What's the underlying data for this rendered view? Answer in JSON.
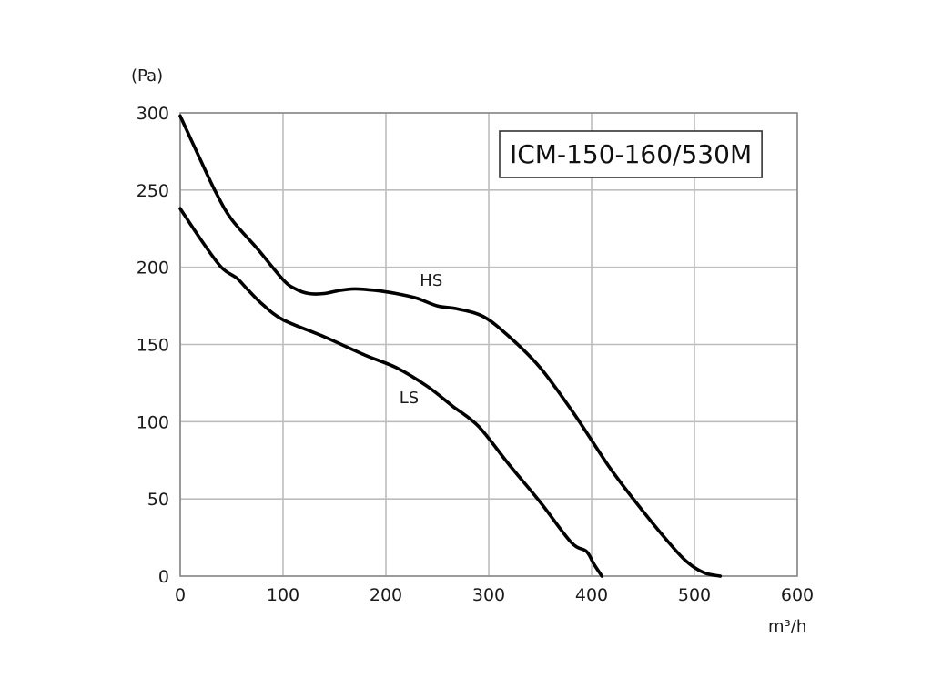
{
  "chart_data": {
    "type": "line",
    "title": "ICM-150-160/530M",
    "xlabel": "m³/h",
    "ylabel": "(Pa)",
    "xlim": [
      0,
      600
    ],
    "ylim": [
      0,
      300
    ],
    "x_ticks": [
      "0",
      "100",
      "200",
      "300",
      "400",
      "500",
      "600"
    ],
    "y_ticks": [
      "0",
      "50",
      "100",
      "150",
      "200",
      "250",
      "300"
    ],
    "grid": true,
    "series": [
      {
        "name": "HS",
        "color": "#000000",
        "x": [
          0,
          18,
          35,
          50,
          75,
          100,
          112,
          125,
          140,
          155,
          170,
          190,
          210,
          230,
          250,
          270,
          295,
          320,
          350,
          380,
          400,
          420,
          450,
          480,
          495,
          510,
          525
        ],
        "y": [
          298,
          272,
          248,
          231,
          212,
          192,
          186,
          183,
          183,
          185,
          186,
          185,
          183,
          180,
          175,
          173,
          168,
          155,
          135,
          108,
          88,
          68,
          42,
          18,
          8,
          2,
          0
        ],
        "label_at": [
          233,
          188
        ]
      },
      {
        "name": "LS",
        "color": "#000000",
        "x": [
          0,
          20,
          40,
          55,
          65,
          80,
          100,
          140,
          180,
          210,
          240,
          265,
          290,
          320,
          350,
          380,
          395,
          402,
          410
        ],
        "y": [
          238,
          218,
          200,
          193,
          186,
          176,
          166,
          155,
          143,
          135,
          123,
          110,
          97,
          72,
          48,
          22,
          16,
          8,
          0
        ],
        "label_at": [
          213,
          112
        ]
      }
    ]
  }
}
